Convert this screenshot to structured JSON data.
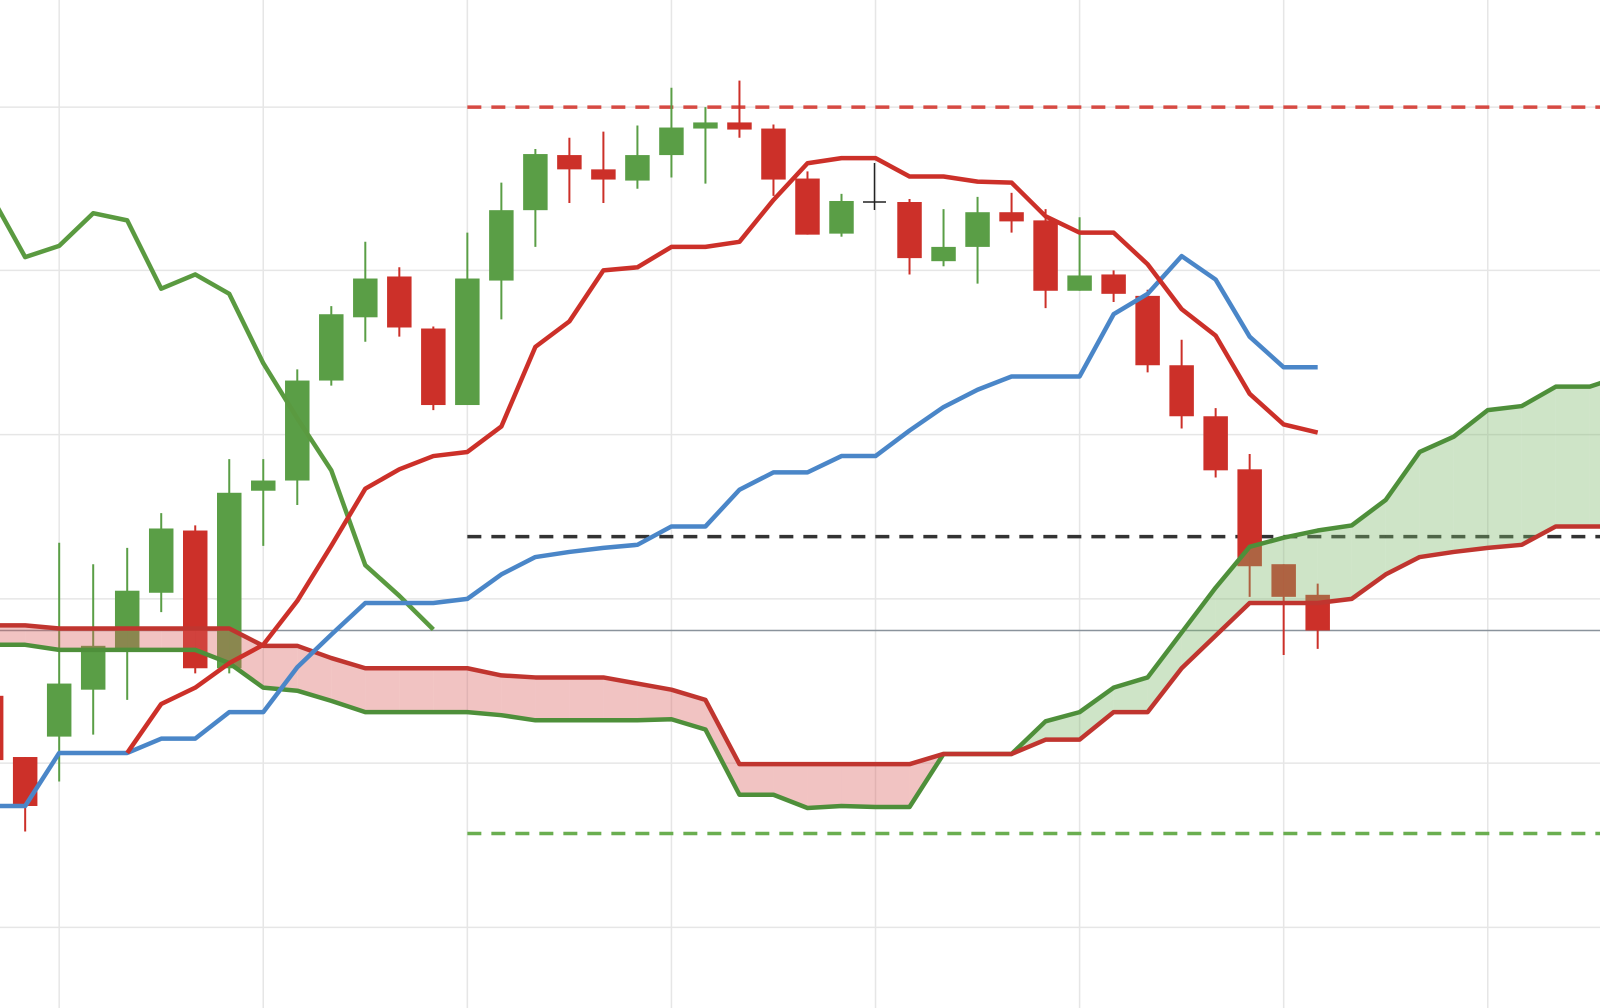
{
  "chart_data": {
    "type": "candlestick",
    "x": [
      -1,
      0,
      1,
      2,
      3,
      4,
      5,
      6,
      7,
      8,
      9,
      10,
      11,
      12,
      13,
      14,
      15,
      16,
      17,
      18,
      19,
      20,
      21,
      22,
      23,
      24,
      26,
      27,
      28,
      29,
      30,
      31,
      32,
      33,
      34,
      35,
      36,
      37,
      38
    ],
    "open": [
      227,
      167,
      187,
      233,
      272,
      328,
      389,
      254,
      428,
      438,
      536,
      598,
      638,
      587,
      512,
      634,
      703,
      757,
      743,
      732,
      757,
      783,
      789,
      783,
      734,
      680,
      711,
      653,
      667,
      701,
      693,
      624,
      640,
      619,
      551,
      501,
      449,
      356,
      326
    ],
    "high": [
      227,
      167,
      377,
      356,
      372,
      406,
      394,
      459,
      459,
      547,
      609,
      672,
      647,
      589,
      681,
      730,
      763,
      774,
      780,
      786,
      823,
      804,
      830,
      787,
      741,
      719,
      714,
      704,
      716,
      720,
      704,
      696,
      644,
      625,
      576,
      509,
      464,
      356,
      337
    ],
    "low": [
      164,
      94,
      143,
      189,
      223,
      309,
      249,
      249,
      374,
      414,
      531,
      574,
      579,
      507,
      512,
      596,
      667,
      710,
      710,
      724,
      735,
      729,
      774,
      717,
      679,
      677,
      640,
      648,
      631,
      681,
      607,
      624,
      613,
      544,
      489,
      441,
      324,
      267,
      273
    ],
    "close": [
      164,
      119,
      239,
      276,
      330,
      391,
      254,
      426,
      438,
      536,
      601,
      636,
      588,
      512,
      636,
      703,
      758,
      743,
      733,
      757,
      784,
      789,
      782,
      733,
      679,
      712,
      656,
      667,
      701,
      692,
      624,
      639,
      621,
      551,
      501,
      448,
      354,
      324,
      291
    ],
    "up_color": "#5a9e46",
    "down_color": "#cc3029",
    "xlim": [
      -0.74,
      46.3
    ],
    "ylim": [
      -79,
      909
    ],
    "xticks": [
      1,
      7,
      13,
      19,
      25,
      31,
      37,
      43
    ],
    "yticks": [
      0,
      161,
      322,
      483,
      644,
      804
    ],
    "grid": true,
    "overlay": {
      "x": [
        -1,
        0,
        1,
        2,
        3,
        4,
        5,
        6,
        7,
        8,
        9,
        10,
        11,
        12,
        13,
        14,
        15,
        16,
        17,
        18,
        19,
        20,
        21,
        22,
        23,
        24,
        25,
        26,
        27,
        28,
        29,
        30,
        31,
        32,
        33,
        34,
        35,
        36,
        37,
        38,
        39,
        40,
        41,
        42,
        43,
        44,
        45,
        46,
        47
      ],
      "series": [
        {
          "color": "#4e8f3a",
          "values": [
            277,
            277,
            272,
            272,
            272,
            272,
            272,
            259,
            235,
            232,
            222,
            211,
            211,
            211,
            211,
            208,
            203,
            203,
            203,
            203,
            204,
            194,
            130,
            130,
            117,
            119,
            118,
            118,
            170,
            170,
            170,
            202,
            211,
            235,
            245,
            289,
            333,
            373,
            382,
            389,
            394,
            419,
            466,
            481,
            507,
            511,
            530,
            530,
            541
          ]
        },
        {
          "color": "#c0352f",
          "values": [
            296,
            296,
            293,
            293,
            293,
            293,
            293,
            293,
            276,
            276,
            264,
            254,
            254,
            254,
            254,
            247,
            245,
            245,
            245,
            239,
            233,
            223,
            160,
            160,
            160,
            160,
            160,
            160,
            170,
            170,
            170,
            184,
            184,
            211,
            211,
            254,
            286,
            318,
            318,
            318,
            322,
            346,
            363,
            368,
            372,
            375,
            393,
            393,
            393
          ]
        },
        {
          "color": "#5a9a40",
          "values": [
            717,
            657,
            668,
            700,
            693,
            626,
            640,
            621,
            553,
            499,
            448,
            355,
            325,
            292,
            null,
            null,
            null,
            null,
            null,
            null,
            null,
            null,
            null,
            null,
            null,
            null,
            null,
            null,
            null,
            null,
            null,
            null,
            null,
            null,
            null,
            null,
            null,
            null,
            null,
            null,
            null,
            null,
            null,
            null,
            null,
            null,
            null,
            null,
            null
          ]
        },
        {
          "color": "#4a86c8",
          "values": [
            119,
            119,
            171,
            171,
            171,
            185,
            185,
            211,
            211,
            255,
            287,
            318,
            318,
            318,
            322,
            346,
            363,
            368,
            372,
            375,
            393,
            393,
            429,
            446,
            446,
            462,
            462,
            487,
            510,
            527,
            540,
            540,
            540,
            601,
            621,
            658,
            635,
            579,
            549,
            549,
            null,
            null,
            null,
            null,
            null,
            null,
            null,
            null,
            null
          ]
        },
        {
          "color": "#cc3029",
          "values": [
            null,
            null,
            null,
            null,
            171,
            219,
            235,
            259,
            277,
            320,
            374,
            430,
            449,
            462,
            466,
            491,
            569,
            594,
            644,
            647,
            667,
            667,
            672,
            713,
            749,
            754,
            754,
            736,
            736,
            731,
            730,
            697,
            681,
            681,
            650,
            606,
            580,
            523,
            493,
            485,
            null,
            null,
            null,
            null,
            null,
            null,
            null,
            null,
            null
          ]
        }
      ],
      "cloud": {
        "a": 0,
        "b": 1,
        "up_fill": "#7fb86c",
        "down_fill": "#d9625e"
      }
    },
    "levels": [
      {
        "value": 804,
        "x_start": 13,
        "color": "#d64a43",
        "dash": true
      },
      {
        "value": 383,
        "x_start": 13,
        "color": "#333333",
        "dash": true
      },
      {
        "value": 92,
        "x_start": 13,
        "color": "#6aae50",
        "dash": true
      },
      {
        "value": 291,
        "color": "#8a939c",
        "dash": false
      }
    ]
  }
}
